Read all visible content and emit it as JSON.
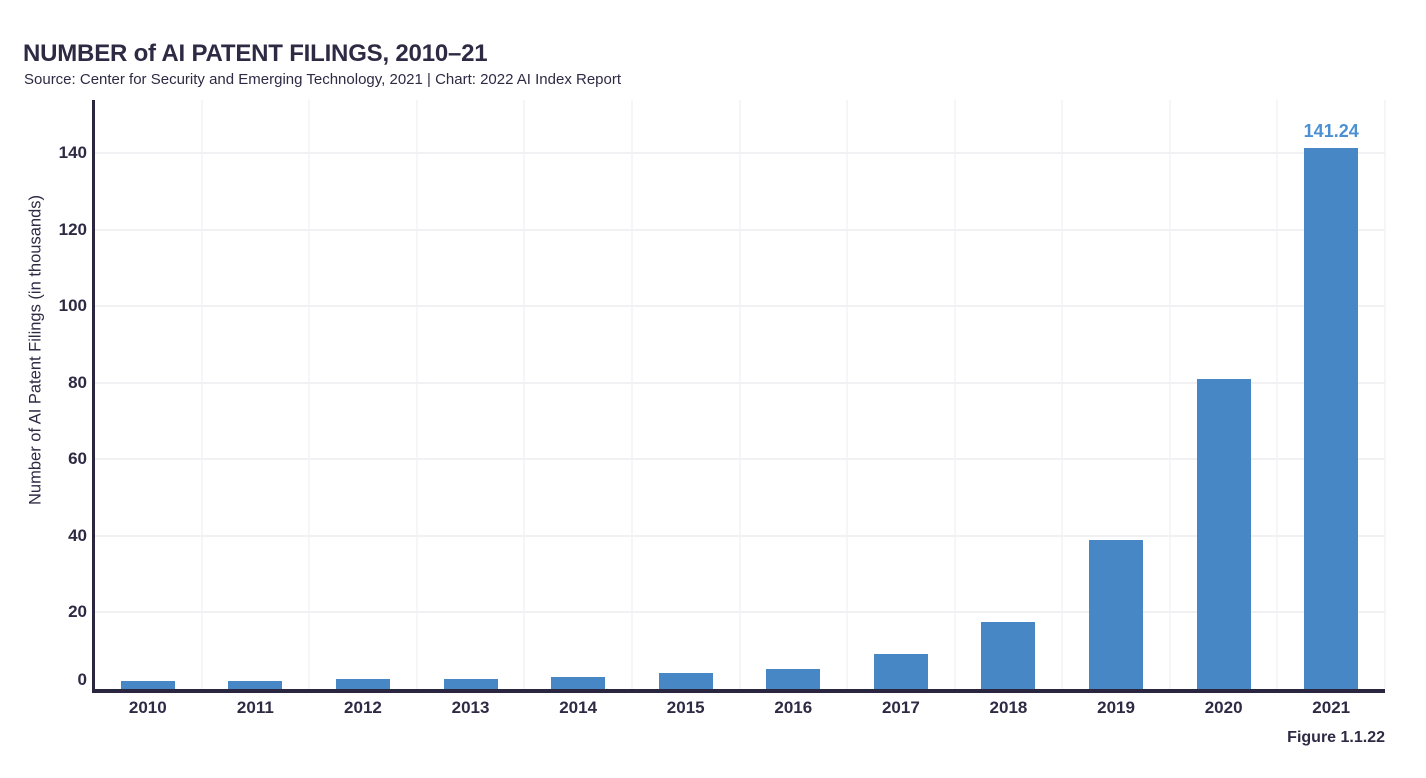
{
  "header": {
    "title": "NUMBER of AI PATENT FILINGS, 2010–21",
    "source": "Source: Center for Security and Emerging Technology, 2021 | Chart: 2022 AI Index Report"
  },
  "figure_label": "Figure 1.1.22",
  "colors": {
    "background": "#ffffff",
    "text": "#2e2a44",
    "axis": "#2b2640",
    "bar": "#4887c5",
    "bar_label": "#4b90d3",
    "grid_h": "#f1f1f3",
    "grid_v": "#f6f6f8"
  },
  "chart_data": {
    "type": "bar",
    "title": "NUMBER of AI PATENT FILINGS, 2010–21",
    "categories": [
      "2010",
      "2011",
      "2012",
      "2013",
      "2014",
      "2015",
      "2016",
      "2017",
      "2018",
      "2019",
      "2020",
      "2021"
    ],
    "values": [
      2.1,
      2.2,
      2.5,
      2.6,
      3.1,
      4.2,
      5.2,
      9.1,
      17.5,
      39.0,
      80.9,
      141.24
    ],
    "annotations": [
      {
        "category": "2021",
        "text": "141.24"
      }
    ],
    "xlabel": "",
    "ylabel": "Number of AI Patent Filings (in thousands)",
    "ylim": [
      0,
      148
    ],
    "yticks": [
      0,
      20,
      40,
      60,
      80,
      100,
      120,
      140
    ],
    "grid": "horizontal and vertical light gridlines",
    "legend_position": "none"
  }
}
